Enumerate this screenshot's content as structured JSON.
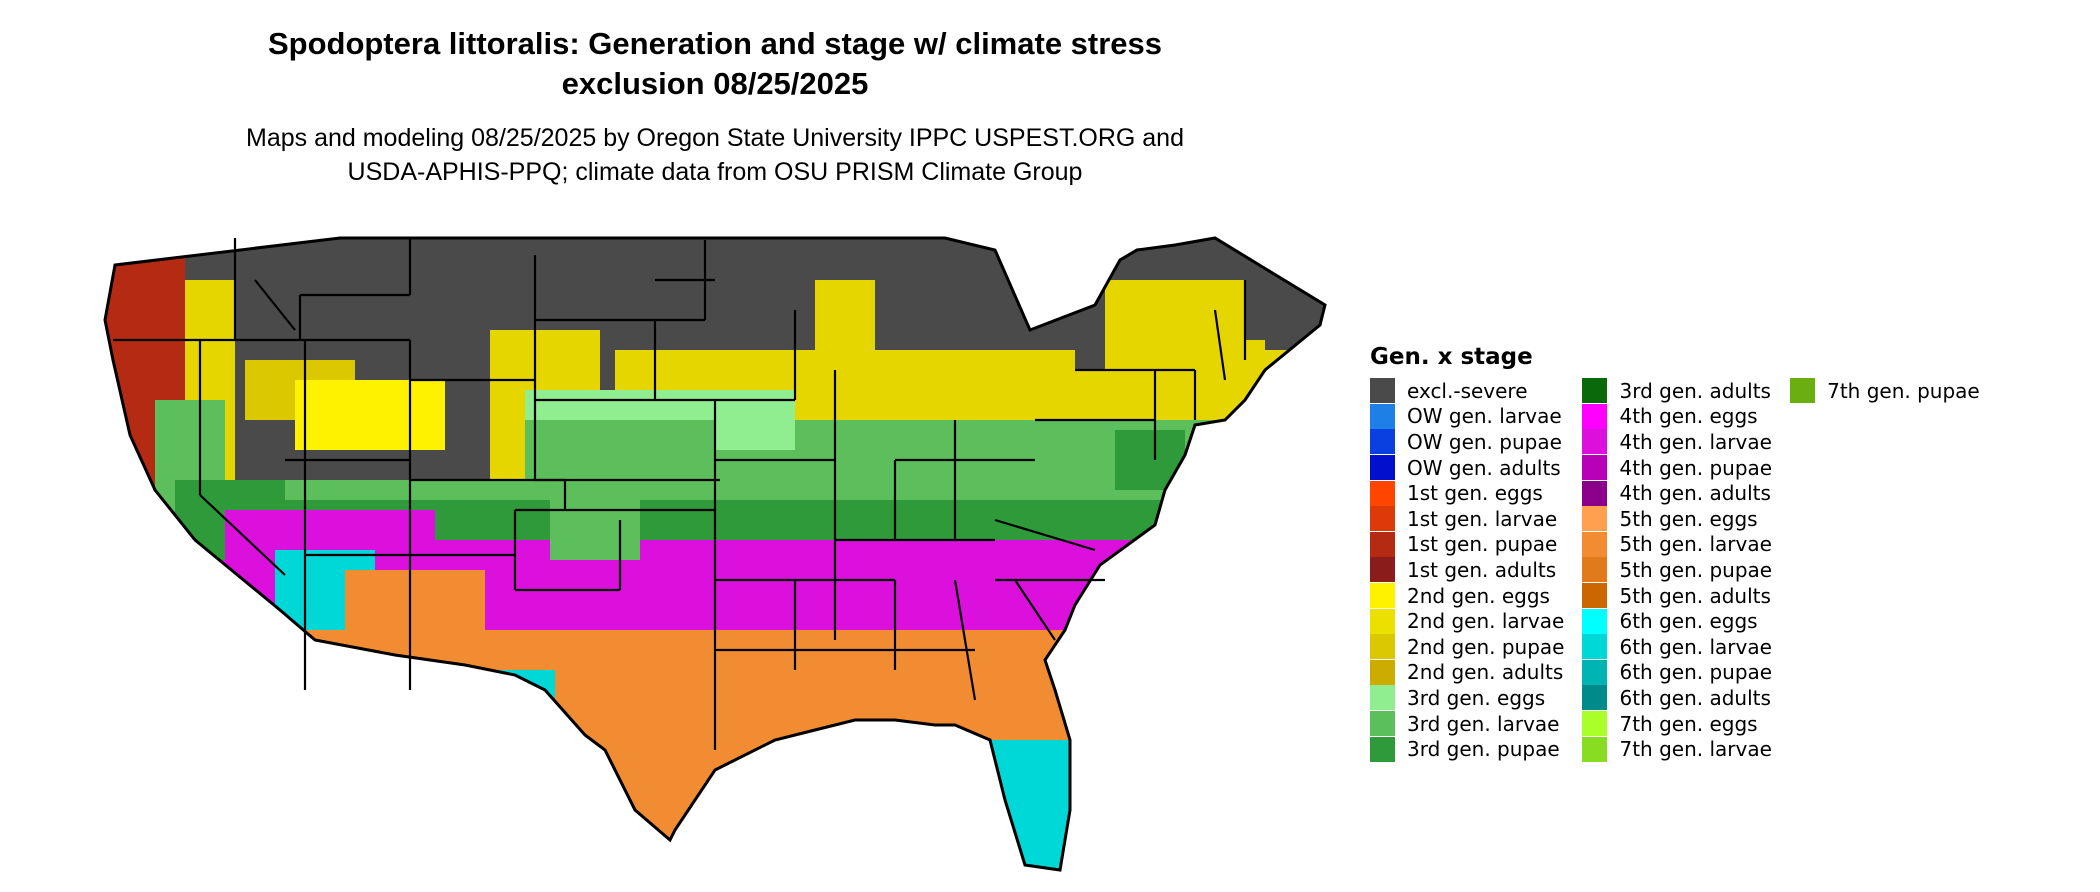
{
  "title": {
    "line1": "Spodoptera littoralis: Generation and stage w/ climate stress",
    "line2": "exclusion 08/25/2025"
  },
  "subtitle": {
    "line1": "Maps and modeling 08/25/2025 by Oregon State University IPPC USPEST.ORG and",
    "line2": "USDA-APHIS-PPQ; climate data from OSU PRISM Climate Group"
  },
  "legend": {
    "title": "Gen. x stage",
    "columns": [
      [
        {
          "label": "excl.-severe",
          "color": "#4a4a4a"
        },
        {
          "label": "OW gen. larvae",
          "color": "#1e7fe6"
        },
        {
          "label": "OW gen. pupae",
          "color": "#0a3fe0"
        },
        {
          "label": "OW gen. adults",
          "color": "#0010cc"
        },
        {
          "label": "1st gen. eggs",
          "color": "#ff4500"
        },
        {
          "label": "1st gen. larvae",
          "color": "#dd3a0a"
        },
        {
          "label": "1st gen. pupae",
          "color": "#b52a12"
        },
        {
          "label": "1st gen. adults",
          "color": "#8b1c1c"
        },
        {
          "label": "2nd gen. eggs",
          "color": "#fff200"
        },
        {
          "label": "2nd gen. larvae",
          "color": "#ece000"
        },
        {
          "label": "2nd gen. pupae",
          "color": "#dcc800"
        },
        {
          "label": "2nd gen. adults",
          "color": "#ccac00"
        },
        {
          "label": "3rd gen. eggs",
          "color": "#90ee90"
        },
        {
          "label": "3rd gen. larvae",
          "color": "#5cbf5c"
        },
        {
          "label": "3rd gen. pupae",
          "color": "#2e9a3a"
        }
      ],
      [
        {
          "label": "3rd gen. adults",
          "color": "#0a6a0a"
        },
        {
          "label": "4th gen. eggs",
          "color": "#ff00ff"
        },
        {
          "label": "4th gen. larvae",
          "color": "#dc10dc"
        },
        {
          "label": "4th gen. pupae",
          "color": "#b800b8"
        },
        {
          "label": "4th gen. adults",
          "color": "#8b008b"
        },
        {
          "label": "5th gen. eggs",
          "color": "#ffa050"
        },
        {
          "label": "5th gen. larvae",
          "color": "#f28c32"
        },
        {
          "label": "5th gen. pupae",
          "color": "#e07a1a"
        },
        {
          "label": "5th gen. adults",
          "color": "#cc6600"
        },
        {
          "label": "6th gen. eggs",
          "color": "#00ffff"
        },
        {
          "label": "6th gen. larvae",
          "color": "#00d8d8"
        },
        {
          "label": "6th gen. pupae",
          "color": "#00b4b4"
        },
        {
          "label": "6th gen. adults",
          "color": "#008b8b"
        },
        {
          "label": "7th gen. eggs",
          "color": "#aaff2a"
        },
        {
          "label": "7th gen. larvae",
          "color": "#88dd22"
        }
      ],
      [
        {
          "label": "7th gen. pupae",
          "color": "#6aaf10"
        }
      ]
    ]
  }
}
